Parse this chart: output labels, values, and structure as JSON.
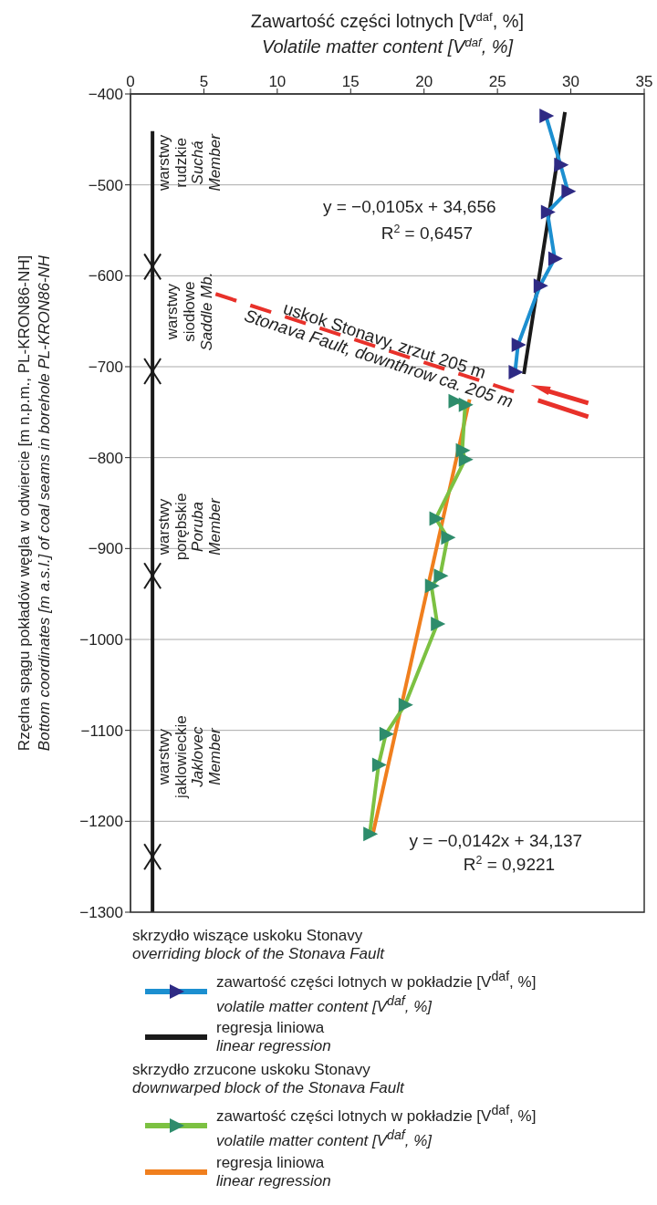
{
  "chart_data": {
    "type": "line",
    "xlabel": "Zawartość części lotnych [V$^{daf}$, %]\nVolatile matter content [V$^{daf}$, %]",
    "ylabel": "Rzędna spągu pokładów węgla w odwiercie [m n.p.m., PL-KRON86-NH]\nBottom coordinates [m a.s.l.] of coal seams in borehole PL-KRON86-NH",
    "xlim": [
      0,
      35
    ],
    "xticks": [
      0,
      5,
      10,
      15,
      20,
      25,
      30,
      35
    ],
    "ylim": [
      -1300,
      -400
    ],
    "yticks": [
      -400,
      -500,
      -600,
      -700,
      -800,
      -900,
      -1000,
      -1100,
      -1200,
      -1300
    ],
    "grid": "y",
    "legend": "bottom",
    "series": [
      {
        "name": "zawartość części lotnych w pokładzie [V$^{daf}$, %]\nvolatile matter content [V$^{daf}$, %]",
        "marker": "triangle",
        "color": "#1c8fd0",
        "colors": [
          "#2e2a84",
          "#2e2a84",
          "#2e2a84",
          "#2e2a84",
          "#2e2a84",
          "#2e2a84",
          "#2e2a84",
          "#2e2a84"
        ],
        "x": [
          28.3,
          29.3,
          29.8,
          28.4,
          28.9,
          27.9,
          26.4,
          26.2
        ],
        "values": [
          -424,
          -478,
          -507,
          -530,
          -581,
          -611,
          -676,
          -706
        ]
      },
      {
        "name": "regresja liniowa\nlinear regression",
        "marker": "none",
        "color": "#1a1a1a",
        "x": [
          29.6,
          26.8
        ],
        "values": [
          -420,
          -708
        ]
      },
      {
        "name": "zawartość części lotnych w pokładzie [V$^{daf}$, %]\nvolatile matter content [V$^{daf}$, %]",
        "marker": "triangle",
        "color": "#7cc142",
        "colors": [
          "#2e8c6c",
          "#2e8c6c",
          "#2e8c6c",
          "#2e8c6c",
          "#2e8c6c",
          "#2e8c6c",
          "#2e8c6c",
          "#2e8c6c",
          "#2e8c6c",
          "#2e8c6c",
          "#2e8c6c",
          "#2e8c6c",
          "#2e8c6c"
        ],
        "x": [
          22.1,
          22.8,
          22.6,
          22.8,
          20.8,
          21.6,
          21.1,
          20.5,
          20.9,
          18.7,
          17.4,
          16.9,
          16.3
        ],
        "values": [
          -738,
          -742,
          -792,
          -802,
          -867,
          -888,
          -930,
          -941,
          -983,
          -1072,
          -1104,
          -1138,
          -1214
        ]
      },
      {
        "name": "regresja liniowa\nlinear regression",
        "marker": "none",
        "color": "#f07f1e",
        "x": [
          23.1,
          16.5
        ],
        "values": [
          -736,
          -1215
        ]
      },
      {
        "marker": "none",
        "line_style": "dashed",
        "color": "#e8312a",
        "x": [
          5.8,
          26.4
        ],
        "values": [
          -620,
          -729
        ]
      },
      {
        "marker": "none",
        "color": "#1a1a1a",
        "x": [
          1.5,
          1.5
        ],
        "values": [
          -441,
          -1300
        ]
      },
      {
        "type": "scatter",
        "marker": "cross",
        "color": "#1a1a1a",
        "x": [
          1.5,
          1.5,
          1.5,
          1.5
        ],
        "values": [
          -590,
          -705,
          -930,
          -1239
        ]
      }
    ],
    "annotations": [
      "warstwy\nrudzkie\nSuchá\nMember",
      "warstwy\nsiodłowe\nSaddle Mb.",
      "warstwy\nporębskie\nPoruba\nMember",
      "warstwy\njaklowieckie\nJaklovec\nMember",
      "uskok Stonavy, zrzut 205 m\nStonava Fault, downthrow ca. 205 m",
      "y = −0,0105x + 34,656",
      "R$^{2}$ = 0,6457",
      "y = −0,0142x + 34,137",
      "R$^{2}$ = 0,9221",
      "skrzydło wiszące uskoku Stonavy\noverriding block of the Stonava Fault",
      "skrzydło zrzucone uskoku Stonavy\ndownwarped block of the Stonava Fault"
    ]
  }
}
